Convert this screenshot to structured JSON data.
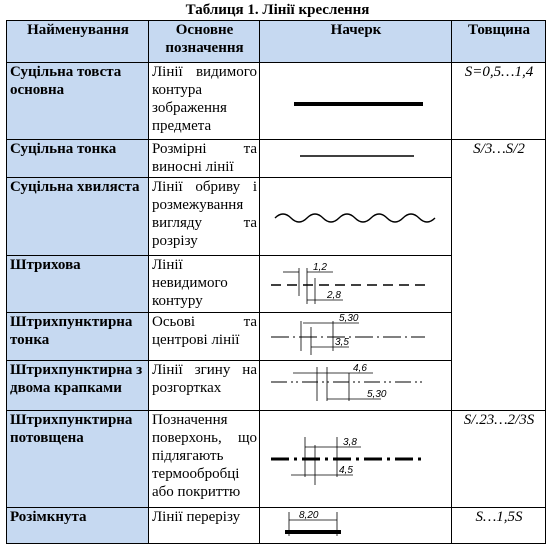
{
  "title": "Таблиця 1. Лінії креслення",
  "headers": {
    "name": "Найменування",
    "purpose": "Основне позначення",
    "sample": "Начерк",
    "thickness": "Товщина"
  },
  "rows": [
    {
      "name": "Суцільна товста основна",
      "purpose": "Лінії видимого контура зображення предмета"
    },
    {
      "name": "Суцільна тонка",
      "purpose": "Розмірні та виносні лінії"
    },
    {
      "name": "Суцільна хвиляста",
      "purpose": "Лінії обриву і розмежування вигляду та розрізу"
    },
    {
      "name": "Штрихова",
      "purpose": "Лінії невидимого контуру"
    },
    {
      "name": "Штрихпунктирна тонка",
      "purpose": "Осьові та центрові лінії"
    },
    {
      "name": "Штрихпунктирна з двома крапками",
      "purpose": "Лінії згину на розгортках"
    },
    {
      "name": "Штрихпунктирна потовщена",
      "purpose": "Позначення поверхонь, що підлягають термообробці або покриттю"
    },
    {
      "name": "Розімкнута",
      "purpose": "Лінії перерізу"
    }
  ],
  "thickness": {
    "main": "S=0,5…1,4",
    "thin": "S/3…S/2",
    "thickened": "S/.23…2/3S",
    "open": "S…1,5S"
  },
  "dims": {
    "dashed_a": "1,2",
    "dashed_b": "2,8",
    "dashdot_a": "5,30",
    "dashdot_b": "3,5",
    "twodot_a": "4,6",
    "twodot_b": "5,30",
    "thick_a": "3,8",
    "thick_b": "4,5",
    "open_a": "8,20"
  }
}
